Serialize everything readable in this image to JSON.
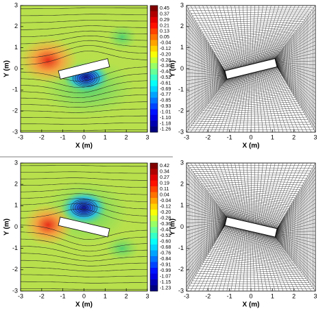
{
  "chart_data": [
    {
      "type": "contour",
      "xlabel": "X (m)",
      "ylabel": "Y (m)",
      "xlim": [
        -3,
        3
      ],
      "ylim": [
        -3,
        3
      ],
      "xticks": [
        -3,
        -2,
        -1,
        0,
        1,
        2,
        3
      ],
      "yticks": [
        -3,
        -2,
        -1,
        0,
        1,
        2,
        3
      ],
      "levels": [
        0.45,
        0.37,
        0.29,
        0.21,
        0.13,
        0.05,
        -0.04,
        -0.12,
        {
          "value": -0.2,
          "label": "-0.20"
        },
        -0.28,
        -0.36,
        -0.44,
        -0.52,
        -0.61,
        -0.69,
        -0.77,
        -0.85,
        -0.93,
        -1.01,
        {
          "value": -1.1,
          "label": "-1.10"
        },
        -1.18,
        -1.26
      ]
    },
    {
      "type": "mesh",
      "xlabel": "X (m)",
      "ylabel": "Y (m)",
      "xlim": [
        -3,
        3
      ],
      "ylim": [
        -3,
        3
      ],
      "xticks": [
        -3,
        -2,
        -1,
        0,
        1,
        2,
        3
      ],
      "yticks": [
        -3,
        -2,
        -1,
        0,
        1,
        2,
        3
      ]
    },
    {
      "type": "contour",
      "xlabel": "X (m)",
      "ylabel": "Y (m)",
      "xlim": [
        -3,
        3
      ],
      "ylim": [
        -3,
        3
      ],
      "xticks": [
        -3,
        -2,
        -1,
        0,
        1,
        2,
        3
      ],
      "yticks": [
        -3,
        -2,
        -1,
        0,
        1,
        2,
        3
      ],
      "levels": [
        0.42,
        0.34,
        0.27,
        0.19,
        0.11,
        0.04,
        -0.04,
        -0.12,
        {
          "value": -0.2,
          "label": "-0.20"
        },
        -0.28,
        -0.36,
        -0.44,
        -0.52,
        {
          "value": -0.6,
          "label": "-0.60"
        },
        -0.68,
        -0.76,
        -0.84,
        -0.91,
        -0.99,
        -1.07,
        -1.15,
        -1.23
      ]
    },
    {
      "type": "mesh",
      "xlabel": "X (m)",
      "ylabel": "Y (m)",
      "xlim": [
        -3,
        3
      ],
      "ylim": [
        -3,
        3
      ],
      "xticks": [
        -3,
        -2,
        -1,
        0,
        1,
        2,
        3
      ],
      "yticks": [
        -3,
        -2,
        -1,
        0,
        1,
        2,
        3
      ]
    }
  ]
}
